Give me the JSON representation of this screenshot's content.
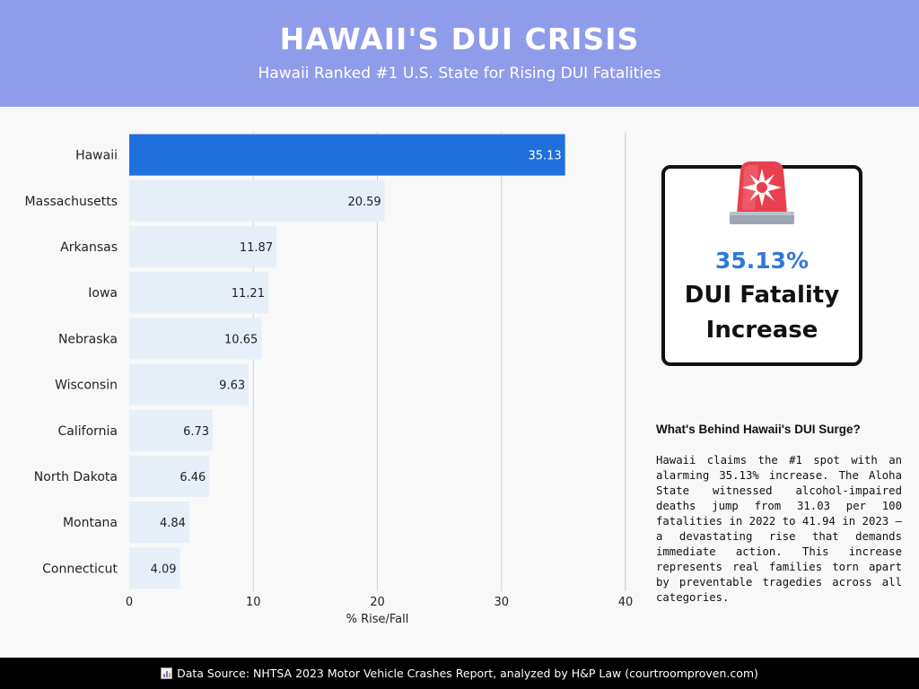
{
  "header": {
    "title": "HAWAII'S DUI CRISIS",
    "subtitle": "Hawaii Ranked #1 U.S. State for Rising DUI Fatalities"
  },
  "chart_data": {
    "type": "bar",
    "orientation": "horizontal",
    "categories": [
      "Hawaii",
      "Massachusetts",
      "Arkansas",
      "Iowa",
      "Nebraska",
      "Wisconsin",
      "California",
      "North Dakota",
      "Montana",
      "Connecticut"
    ],
    "values": [
      35.13,
      20.59,
      11.87,
      11.21,
      10.65,
      9.63,
      6.73,
      6.46,
      4.84,
      4.09
    ],
    "value_labels": [
      "35.13",
      "20.59",
      "11.87",
      "11.21",
      "10.65",
      "9.63",
      "6.73",
      "6.46",
      "4.84",
      "4.09"
    ],
    "xlabel": "% Rise/Fall",
    "xlim": [
      0,
      40
    ],
    "xticks": [
      0,
      10,
      20,
      30,
      40
    ],
    "grid": true,
    "highlight_index": 0,
    "colors": {
      "highlight": "#1f6fdc",
      "bar": "#e6eef7",
      "grid": "#cfcfcf"
    }
  },
  "stat_card": {
    "value": "35.13%",
    "label": "DUI Fatality Increase",
    "icon": "siren-icon"
  },
  "sidebar": {
    "heading": "What's Behind Hawaii's DUI Surge?",
    "body": "Hawaii claims the #1 spot with an alarming 35.13% increase. The Aloha State witnessed alcohol-impaired deaths jump from 31.03 per 100 fatalities in 2022 to 41.94 in 2023 – a devastating rise that demands immediate action. This increase represents real families torn apart by preventable tragedies across all categories."
  },
  "footer": {
    "icon": "bar-chart-icon",
    "source": "Data Source: NHTSA 2023 Motor Vehicle Crashes Report, analyzed by H&P Law (courtroomproven.com)"
  },
  "colors": {
    "header_bg": "#8f9cea",
    "accent": "#2f78d6",
    "footer_bg": "#000000"
  }
}
